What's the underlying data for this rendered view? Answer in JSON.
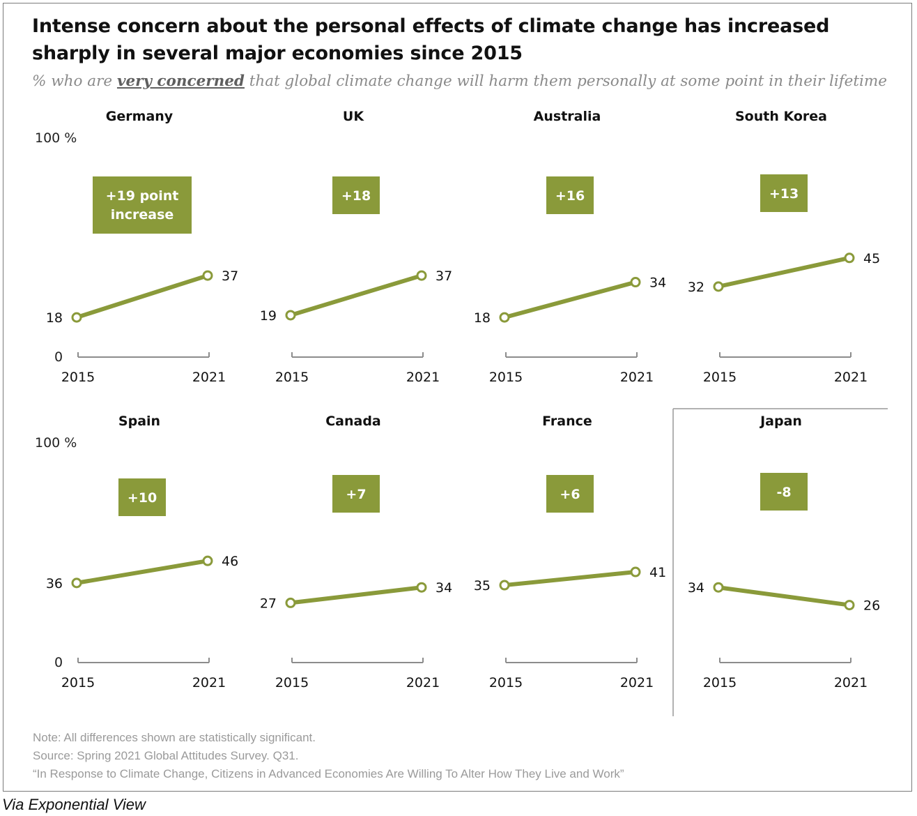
{
  "title": "Intense concern about the personal effects of climate change has increased sharply in several major economies since 2015",
  "subtitle": {
    "prefix": "% who are ",
    "emphasis": "very concerned",
    "suffix": " that global climate change will harm them personally at some point in their lifetime"
  },
  "colors": {
    "series": "#8a9a3a",
    "box": "#8a9a3a",
    "axis": "#8c8c8c"
  },
  "chart_data": {
    "type": "line",
    "y_axis": {
      "top_label": "100 %",
      "bottom_label": "0",
      "ylim": [
        0,
        100
      ]
    },
    "x": [
      "2015",
      "2021"
    ],
    "panels": [
      {
        "name": "Germany",
        "change": "+19 point increase",
        "values": [
          18,
          37
        ]
      },
      {
        "name": "UK",
        "change": "+18",
        "values": [
          19,
          37
        ]
      },
      {
        "name": "Australia",
        "change": "+16",
        "values": [
          18,
          34
        ]
      },
      {
        "name": "South Korea",
        "change": "+13",
        "values": [
          32,
          45
        ]
      },
      {
        "name": "Spain",
        "change": "+10",
        "values": [
          36,
          46
        ]
      },
      {
        "name": "Canada",
        "change": "+7",
        "values": [
          27,
          34
        ]
      },
      {
        "name": "France",
        "change": "+6",
        "values": [
          35,
          41
        ]
      },
      {
        "name": "Japan",
        "change": "-8",
        "values": [
          34,
          26
        ]
      }
    ]
  },
  "notes": {
    "note": "Note: All differences shown are statistically significant.",
    "source": "Source: Spring 2021 Global Attitudes Survey. Q31.",
    "report": "“In Response to Climate Change, Citizens in Advanced Economies Are Willing To Alter How They Live and Work”"
  },
  "via": "Via Exponential View"
}
